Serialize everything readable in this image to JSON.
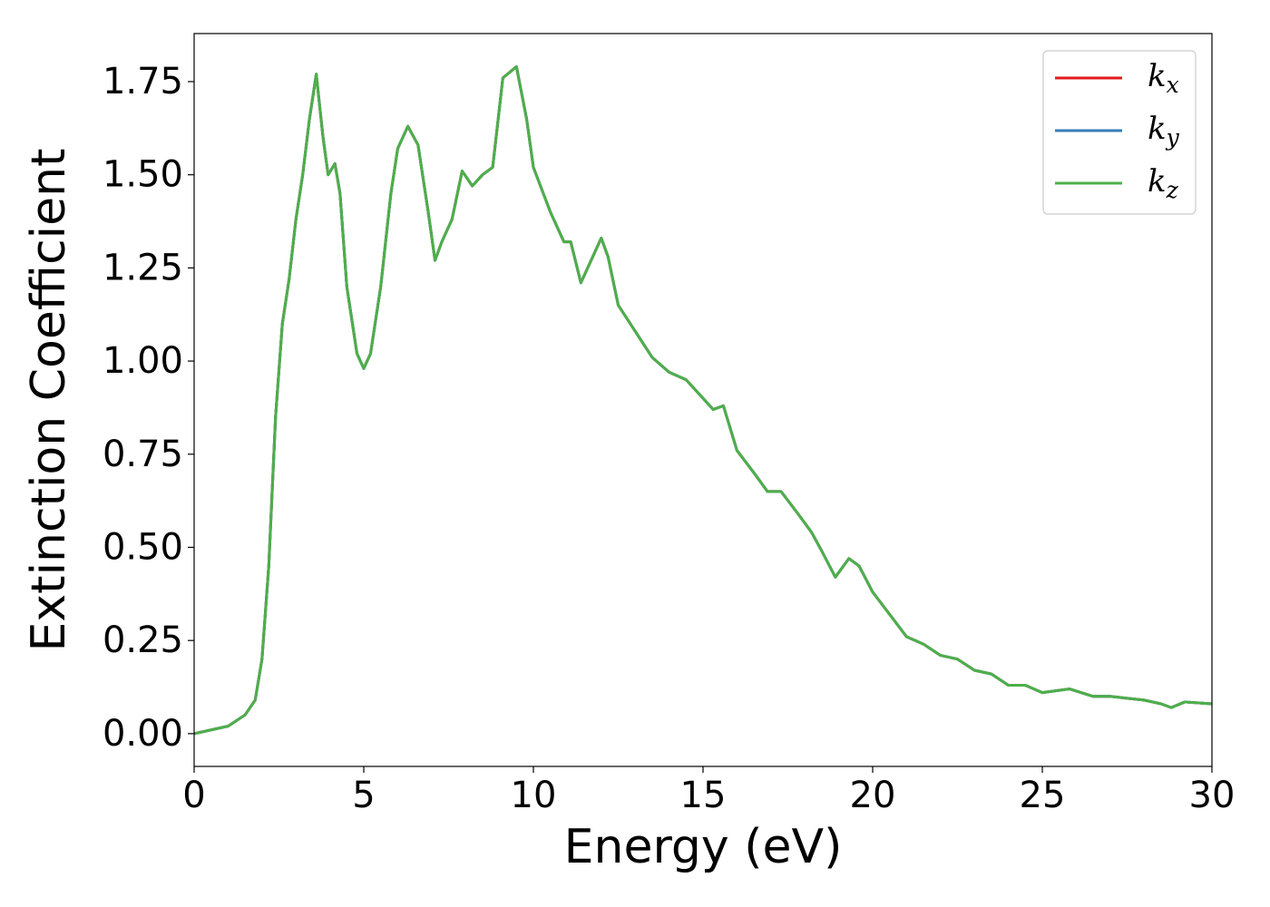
{
  "chart_data": {
    "type": "line",
    "xlabel": "Energy (eV)",
    "ylabel": "Extinction Coefficient",
    "x": [
      0,
      0.5,
      1.0,
      1.5,
      1.8,
      2.0,
      2.2,
      2.4,
      2.6,
      2.8,
      3.0,
      3.2,
      3.4,
      3.6,
      3.8,
      3.95,
      4.15,
      4.3,
      4.5,
      4.8,
      5.0,
      5.2,
      5.5,
      5.8,
      6.0,
      6.3,
      6.6,
      6.9,
      7.1,
      7.3,
      7.6,
      7.9,
      8.2,
      8.5,
      8.8,
      9.1,
      9.5,
      9.8,
      10.0,
      10.5,
      10.9,
      11.1,
      11.4,
      11.7,
      12.0,
      12.2,
      12.5,
      13.0,
      13.5,
      14.0,
      14.5,
      15.0,
      15.3,
      15.6,
      16.0,
      16.5,
      16.9,
      17.3,
      17.8,
      18.2,
      18.5,
      18.9,
      19.3,
      19.6,
      20.0,
      20.5,
      21.0,
      21.5,
      22.0,
      22.5,
      23.0,
      23.5,
      24.0,
      24.5,
      25.0,
      25.8,
      26.5,
      27.0,
      27.5,
      28.0,
      28.5,
      28.8,
      29.2,
      30.0
    ],
    "series": [
      {
        "name": "kx",
        "color": "#e41a1c",
        "values": [
          0.0,
          0.01,
          0.02,
          0.05,
          0.09,
          0.2,
          0.45,
          0.85,
          1.1,
          1.22,
          1.38,
          1.5,
          1.65,
          1.77,
          1.6,
          1.5,
          1.53,
          1.45,
          1.2,
          1.02,
          0.98,
          1.02,
          1.2,
          1.45,
          1.57,
          1.63,
          1.58,
          1.4,
          1.27,
          1.32,
          1.38,
          1.51,
          1.47,
          1.5,
          1.52,
          1.76,
          1.79,
          1.65,
          1.52,
          1.4,
          1.32,
          1.32,
          1.21,
          1.27,
          1.33,
          1.28,
          1.15,
          1.08,
          1.01,
          0.97,
          0.95,
          0.9,
          0.87,
          0.88,
          0.76,
          0.7,
          0.65,
          0.65,
          0.59,
          0.54,
          0.49,
          0.42,
          0.47,
          0.45,
          0.38,
          0.32,
          0.26,
          0.24,
          0.21,
          0.2,
          0.17,
          0.16,
          0.13,
          0.13,
          0.11,
          0.12,
          0.1,
          0.1,
          0.095,
          0.09,
          0.08,
          0.07,
          0.085,
          0.08
        ]
      },
      {
        "name": "ky",
        "color": "#377eb8",
        "values": [
          0.0,
          0.01,
          0.02,
          0.05,
          0.09,
          0.2,
          0.45,
          0.85,
          1.1,
          1.22,
          1.38,
          1.5,
          1.65,
          1.77,
          1.6,
          1.5,
          1.53,
          1.45,
          1.2,
          1.02,
          0.98,
          1.02,
          1.2,
          1.45,
          1.57,
          1.63,
          1.58,
          1.4,
          1.27,
          1.32,
          1.38,
          1.51,
          1.47,
          1.5,
          1.52,
          1.76,
          1.79,
          1.65,
          1.52,
          1.4,
          1.32,
          1.32,
          1.21,
          1.27,
          1.33,
          1.28,
          1.15,
          1.08,
          1.01,
          0.97,
          0.95,
          0.9,
          0.87,
          0.88,
          0.76,
          0.7,
          0.65,
          0.65,
          0.59,
          0.54,
          0.49,
          0.42,
          0.47,
          0.45,
          0.38,
          0.32,
          0.26,
          0.24,
          0.21,
          0.2,
          0.17,
          0.16,
          0.13,
          0.13,
          0.11,
          0.12,
          0.1,
          0.1,
          0.095,
          0.09,
          0.08,
          0.07,
          0.085,
          0.08
        ]
      },
      {
        "name": "kz",
        "color": "#4daf4a",
        "values": [
          0.0,
          0.01,
          0.02,
          0.05,
          0.09,
          0.2,
          0.45,
          0.85,
          1.1,
          1.22,
          1.38,
          1.5,
          1.65,
          1.77,
          1.6,
          1.5,
          1.53,
          1.45,
          1.2,
          1.02,
          0.98,
          1.02,
          1.2,
          1.45,
          1.57,
          1.63,
          1.58,
          1.4,
          1.27,
          1.32,
          1.38,
          1.51,
          1.47,
          1.5,
          1.52,
          1.76,
          1.79,
          1.65,
          1.52,
          1.4,
          1.32,
          1.32,
          1.21,
          1.27,
          1.33,
          1.28,
          1.15,
          1.08,
          1.01,
          0.97,
          0.95,
          0.9,
          0.87,
          0.88,
          0.76,
          0.7,
          0.65,
          0.65,
          0.59,
          0.54,
          0.49,
          0.42,
          0.47,
          0.45,
          0.38,
          0.32,
          0.26,
          0.24,
          0.21,
          0.2,
          0.17,
          0.16,
          0.13,
          0.13,
          0.11,
          0.12,
          0.1,
          0.1,
          0.095,
          0.09,
          0.08,
          0.07,
          0.085,
          0.08
        ]
      }
    ],
    "xlim": [
      0,
      30
    ],
    "xticks": [
      0,
      5,
      10,
      15,
      20,
      25,
      30
    ],
    "ylim": [
      -0.088,
      1.879
    ],
    "yticks": [
      {
        "value": 0,
        "label": "0.00"
      },
      0.25,
      {
        "value": 0.5,
        "label": "0.50"
      },
      0.75,
      {
        "value": 1,
        "label": "1.00"
      },
      1.25,
      {
        "value": 1.5,
        "label": "1.50"
      },
      1.75
    ],
    "grid": false,
    "legend": "upper right"
  }
}
